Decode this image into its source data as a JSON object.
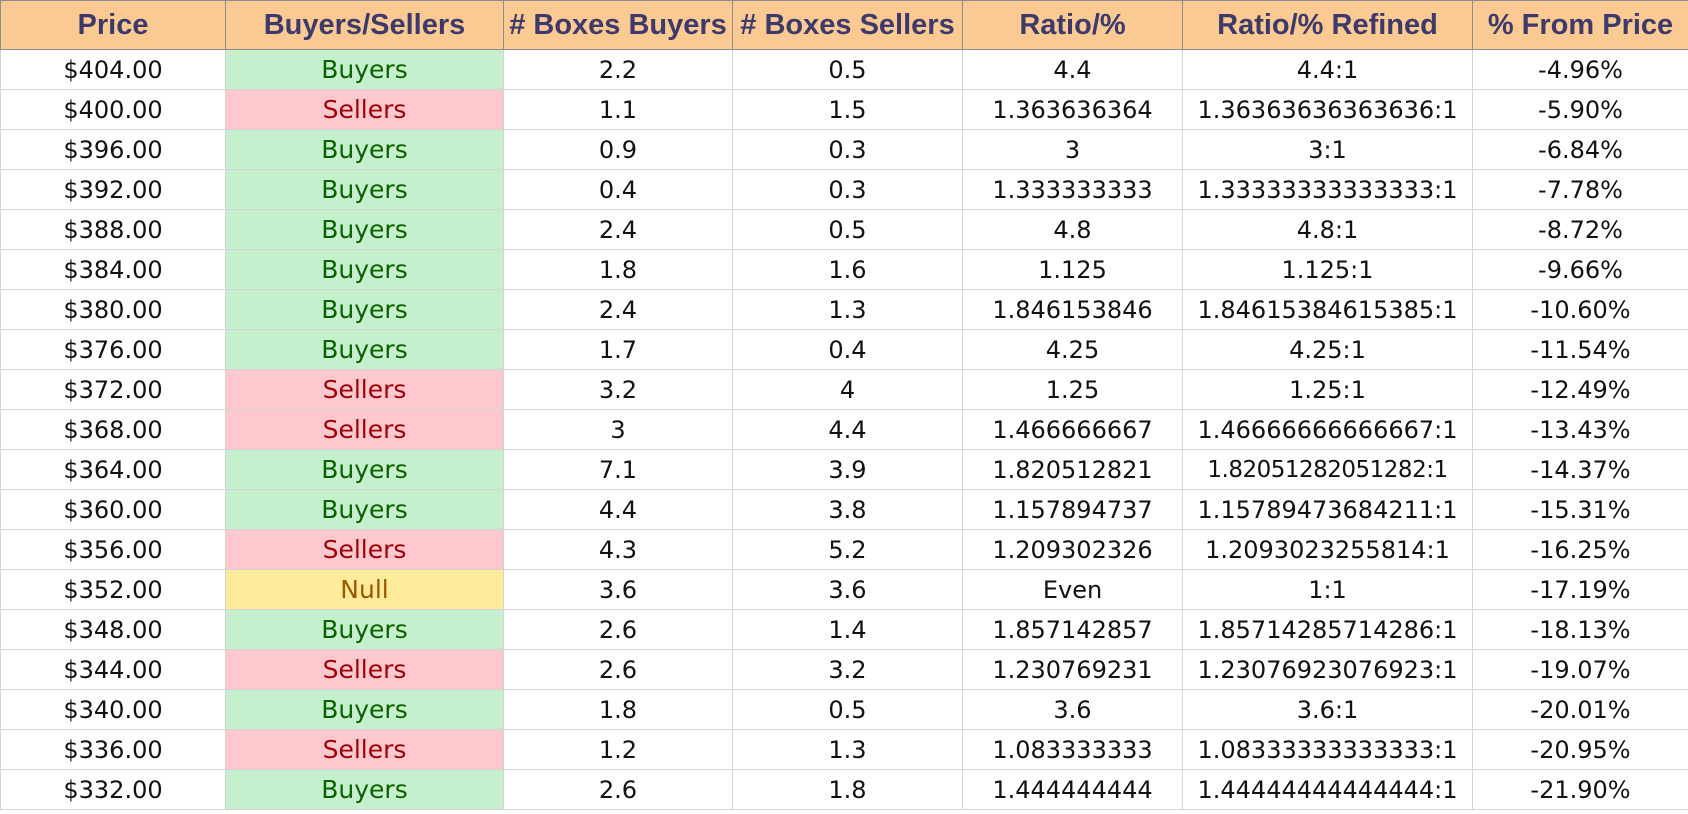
{
  "headers": [
    "Price",
    "Buyers/Sellers",
    "# Boxes Buyers",
    "# Boxes Sellers",
    "Ratio/%",
    "Ratio/% Refined",
    "% From Price"
  ],
  "status_colors": {
    "Buyers": {
      "bg": "#c6efce",
      "fg": "#0a6100"
    },
    "Sellers": {
      "bg": "#ffc7ce",
      "fg": "#9c0006"
    },
    "Null": {
      "bg": "#ffeb9c",
      "fg": "#9c5700"
    }
  },
  "rows": [
    [
      "$404.00",
      "Buyers",
      "2.2",
      "0.5",
      "4.4",
      "4.4:1",
      "-4.96%"
    ],
    [
      "$400.00",
      "Sellers",
      "1.1",
      "1.5",
      "1.363636364",
      "1.36363636363636:1",
      "-5.90%"
    ],
    [
      "$396.00",
      "Buyers",
      "0.9",
      "0.3",
      "3",
      "3:1",
      "-6.84%"
    ],
    [
      "$392.00",
      "Buyers",
      "0.4",
      "0.3",
      "1.333333333",
      "1.33333333333333:1",
      "-7.78%"
    ],
    [
      "$388.00",
      "Buyers",
      "2.4",
      "0.5",
      "4.8",
      "4.8:1",
      "-8.72%"
    ],
    [
      "$384.00",
      "Buyers",
      "1.8",
      "1.6",
      "1.125",
      "1.125:1",
      "-9.66%"
    ],
    [
      "$380.00",
      "Buyers",
      "2.4",
      "1.3",
      "1.846153846",
      "1.84615384615385:1",
      "-10.60%"
    ],
    [
      "$376.00",
      "Buyers",
      "1.7",
      "0.4",
      "4.25",
      "4.25:1",
      "-11.54%"
    ],
    [
      "$372.00",
      "Sellers",
      "3.2",
      "4",
      "1.25",
      "1.25:1",
      "-12.49%"
    ],
    [
      "$368.00",
      "Sellers",
      "3",
      "4.4",
      "1.466666667",
      "1.46666666666667:1",
      "-13.43%"
    ],
    [
      "$364.00",
      "Buyers",
      "7.1",
      "3.9",
      "1.820512821",
      "1.82051282051282:1",
      "-14.37%"
    ],
    [
      "$360.00",
      "Buyers",
      "4.4",
      "3.8",
      "1.157894737",
      "1.15789473684211:1",
      "-15.31%"
    ],
    [
      "$356.00",
      "Sellers",
      "4.3",
      "5.2",
      "1.209302326",
      "1.2093023255814:1",
      "-16.25%"
    ],
    [
      "$352.00",
      "Null",
      "3.6",
      "3.6",
      "Even",
      "1:1",
      "-17.19%"
    ],
    [
      "$348.00",
      "Buyers",
      "2.6",
      "1.4",
      "1.857142857",
      "1.85714285714286:1",
      "-18.13%"
    ],
    [
      "$344.00",
      "Sellers",
      "2.6",
      "3.2",
      "1.230769231",
      "1.23076923076923:1",
      "-19.07%"
    ],
    [
      "$340.00",
      "Buyers",
      "1.8",
      "0.5",
      "3.6",
      "3.6:1",
      "-20.01%"
    ],
    [
      "$336.00",
      "Sellers",
      "1.2",
      "1.3",
      "1.083333333",
      "1.08333333333333:1",
      "-20.95%"
    ],
    [
      "$332.00",
      "Buyers",
      "2.6",
      "1.8",
      "1.444444444",
      "1.44444444444444:1",
      "-21.90%"
    ]
  ]
}
